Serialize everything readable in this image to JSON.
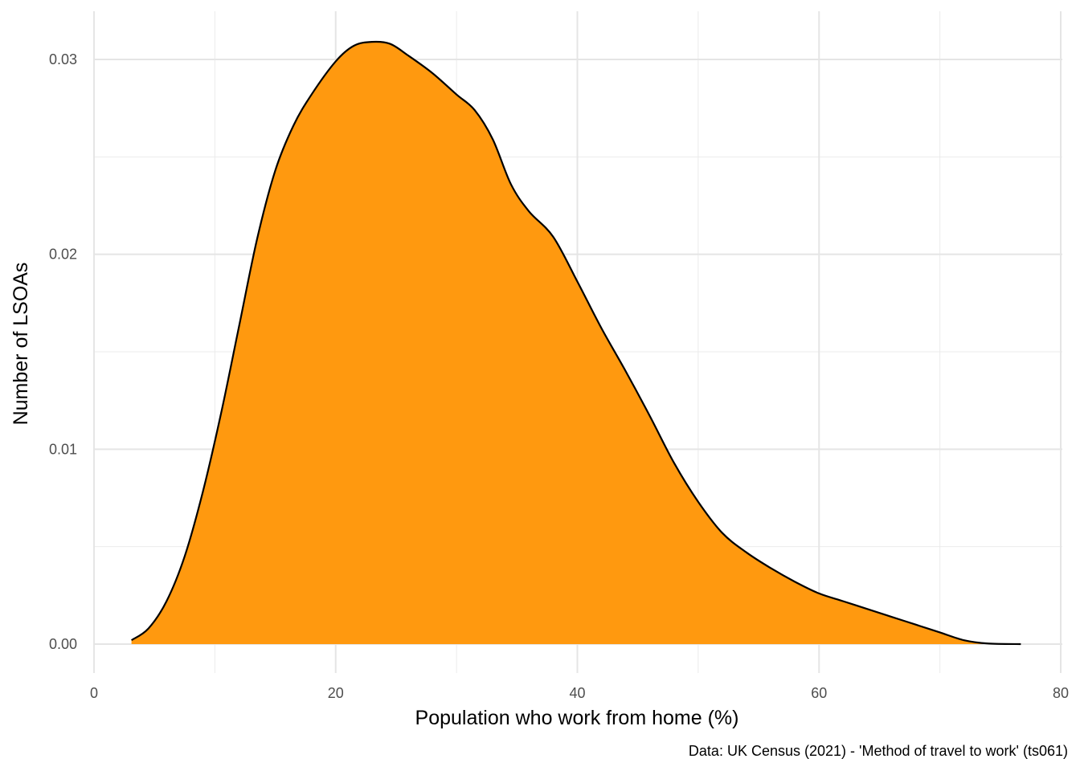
{
  "chart_data": {
    "type": "area",
    "xlabel": "Population who work from home (%)",
    "ylabel": "Number of LSOAs",
    "caption": "Data: UK Census (2021) - 'Method of travel to work' (ts061)",
    "xlim": [
      0,
      80
    ],
    "ylim": [
      0,
      0.031
    ],
    "x_ticks": [
      0,
      20,
      40,
      60,
      80
    ],
    "x_tick_labels": [
      "0",
      "20",
      "40",
      "60",
      "80"
    ],
    "y_ticks": [
      0,
      0.01,
      0.02,
      0.03
    ],
    "y_tick_labels": [
      "0.00",
      "0.01",
      "0.02",
      "0.03"
    ],
    "grid": true,
    "fill_color": "#FF990F",
    "line_color": "#000000",
    "series": [
      {
        "x": [
          3.1,
          4.5,
          6,
          7.5,
          9,
          10.5,
          12,
          13.5,
          15,
          16.5,
          18,
          20,
          21.5,
          23,
          24.5,
          26,
          28,
          30,
          31.5,
          33,
          34.5,
          36,
          38,
          40,
          42,
          44,
          46,
          48,
          50,
          52,
          54,
          56,
          58,
          60,
          62,
          64,
          66,
          68,
          70,
          72,
          74,
          76.7
        ],
        "y": [
          0.0002,
          0.0008,
          0.0022,
          0.0045,
          0.0078,
          0.0118,
          0.0163,
          0.0208,
          0.0243,
          0.0266,
          0.0282,
          0.0299,
          0.0307,
          0.0309,
          0.0308,
          0.0302,
          0.0293,
          0.0282,
          0.0274,
          0.0259,
          0.0236,
          0.0222,
          0.0209,
          0.0186,
          0.0162,
          0.014,
          0.0117,
          0.0093,
          0.0073,
          0.0057,
          0.0047,
          0.0039,
          0.0032,
          0.0026,
          0.0022,
          0.0018,
          0.0014,
          0.001,
          0.0006,
          0.0002,
          3e-05,
          0.0
        ]
      }
    ]
  }
}
